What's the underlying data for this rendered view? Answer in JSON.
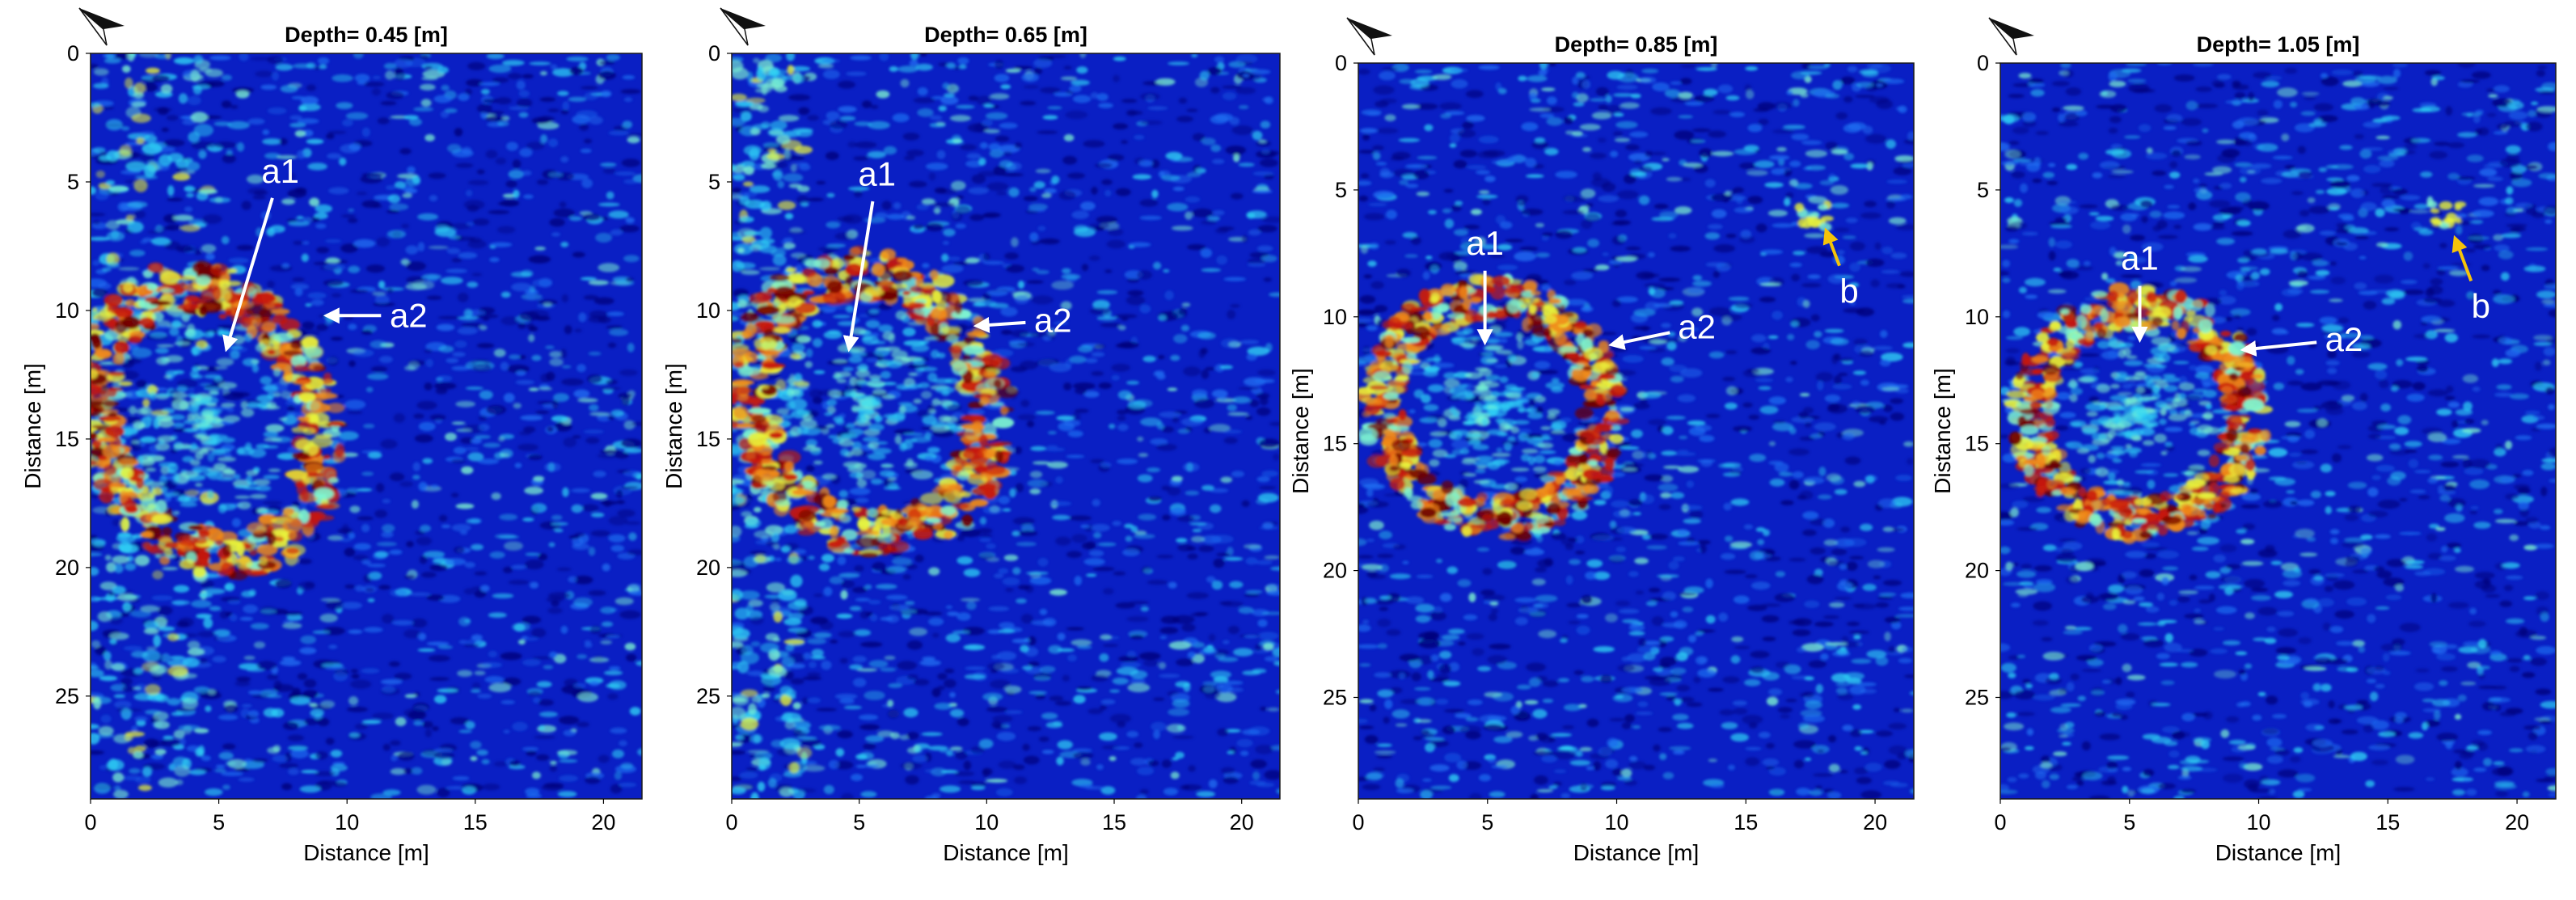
{
  "colors": {
    "background": "#0a1fc4",
    "colormap": [
      "#00007a",
      "#0a1fc4",
      "#1e6cf0",
      "#2fd3f5",
      "#7ef5d0",
      "#e8f23a",
      "#f08a1a",
      "#c81a0a",
      "#6e0000"
    ],
    "annotation_text": "#ffffff",
    "arrow_white": "#ffffff",
    "arrow_yellow": "#f5c30a",
    "axis_text": "#000000"
  },
  "north_icon": "north-arrow-icon",
  "chart_data": [
    {
      "type": "heatmap",
      "title": "Depth= 0.45 [m]",
      "xlabel": "Distance [m]",
      "ylabel": "Distance [m]",
      "xlim": [
        0,
        21.5
      ],
      "ylim": [
        0,
        29
      ],
      "xticks": [
        "0",
        "5",
        "10",
        "15",
        "20"
      ],
      "yticks": [
        "0",
        "5",
        "10",
        "15",
        "20",
        "25"
      ],
      "annotations": [
        {
          "text": "a1",
          "label_at": [
            7.4,
            4.6
          ],
          "arrow_to": [
            5.3,
            11.5
          ],
          "color": "white"
        },
        {
          "text": "a2",
          "label_at": [
            12.4,
            10.2
          ],
          "arrow_to": [
            9.2,
            10.2
          ],
          "color": "white"
        }
      ]
    },
    {
      "type": "heatmap",
      "title": "Depth= 0.65 [m]",
      "xlabel": "Distance [m]",
      "ylabel": "Distance [m]",
      "xlim": [
        0,
        21.5
      ],
      "ylim": [
        0,
        29
      ],
      "xticks": [
        "0",
        "5",
        "10",
        "15",
        "20"
      ],
      "yticks": [
        "0",
        "5",
        "10",
        "15",
        "20",
        "25"
      ],
      "annotations": [
        {
          "text": "a1",
          "label_at": [
            5.7,
            4.7
          ],
          "arrow_to": [
            4.6,
            11.5
          ],
          "color": "white"
        },
        {
          "text": "a2",
          "label_at": [
            12.6,
            10.4
          ],
          "arrow_to": [
            9.6,
            10.6
          ],
          "color": "white"
        }
      ]
    },
    {
      "type": "heatmap",
      "title": "Depth= 0.85 [m]",
      "xlabel": "Distance [m]",
      "ylabel": "Distance [m]",
      "xlim": [
        0,
        21.5
      ],
      "ylim": [
        0,
        29
      ],
      "xticks": [
        "0",
        "5",
        "10",
        "15",
        "20"
      ],
      "yticks": [
        "0",
        "5",
        "10",
        "15",
        "20",
        "25"
      ],
      "annotations": [
        {
          "text": "a1",
          "label_at": [
            4.9,
            7.1
          ],
          "arrow_to": [
            4.9,
            11.0
          ],
          "color": "white"
        },
        {
          "text": "a2",
          "label_at": [
            13.1,
            10.4
          ],
          "arrow_to": [
            9.8,
            11.1
          ],
          "color": "white"
        },
        {
          "text": "b",
          "label_at": [
            19.0,
            9.0
          ],
          "arrow_to": [
            18.1,
            6.6
          ],
          "color": "yellow"
        }
      ]
    },
    {
      "type": "heatmap",
      "title": "Depth= 1.05 [m]",
      "xlabel": "Distance [m]",
      "ylabel": "Distance [m]",
      "xlim": [
        0,
        21.5
      ],
      "ylim": [
        0,
        29
      ],
      "xticks": [
        "0",
        "5",
        "10",
        "15",
        "20"
      ],
      "yticks": [
        "0",
        "5",
        "10",
        "15",
        "20",
        "25"
      ],
      "annotations": [
        {
          "text": "a1",
          "label_at": [
            5.4,
            7.7
          ],
          "arrow_to": [
            5.4,
            10.9
          ],
          "color": "white"
        },
        {
          "text": "a2",
          "label_at": [
            13.3,
            10.9
          ],
          "arrow_to": [
            9.4,
            11.3
          ],
          "color": "white"
        },
        {
          "text": "b",
          "label_at": [
            18.6,
            9.6
          ],
          "arrow_to": [
            17.6,
            6.9
          ],
          "color": "yellow"
        }
      ]
    }
  ]
}
